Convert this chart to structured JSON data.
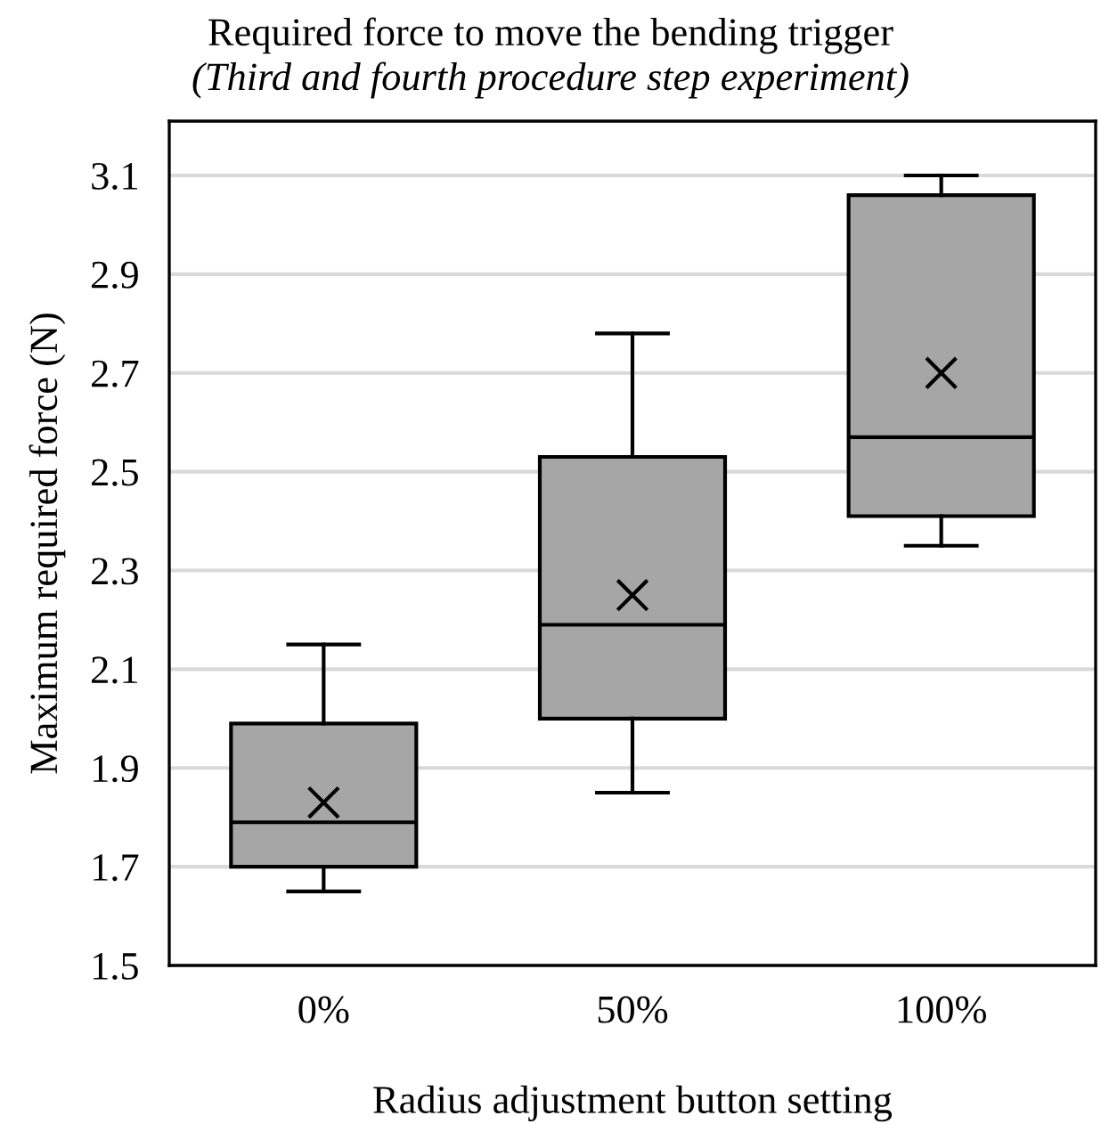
{
  "chart_data": {
    "type": "box",
    "title": "Required force to move the bending trigger",
    "subtitle": "(Third and fourth procedure step experiment)",
    "xlabel": "Radius adjustment button setting",
    "ylabel": "Maximum required force (N)",
    "categories": [
      "0%",
      "50%",
      "100%"
    ],
    "boxes": [
      {
        "low": 1.65,
        "q1": 1.7,
        "median": 1.79,
        "q3": 1.99,
        "high": 2.15,
        "mean": 1.83
      },
      {
        "low": 1.85,
        "q1": 2.0,
        "median": 2.19,
        "q3": 2.53,
        "high": 2.78,
        "mean": 2.25
      },
      {
        "low": 2.35,
        "q1": 2.41,
        "median": 2.57,
        "q3": 3.06,
        "high": 3.1,
        "mean": 2.7
      }
    ],
    "color": "#a6a6a6",
    "ylim": [
      1.5,
      3.21
    ],
    "yticks": [
      1.5,
      1.7,
      1.9,
      2.1,
      2.3,
      2.5,
      2.7,
      2.9,
      3.1
    ],
    "grid": "y",
    "marker": "cross"
  }
}
